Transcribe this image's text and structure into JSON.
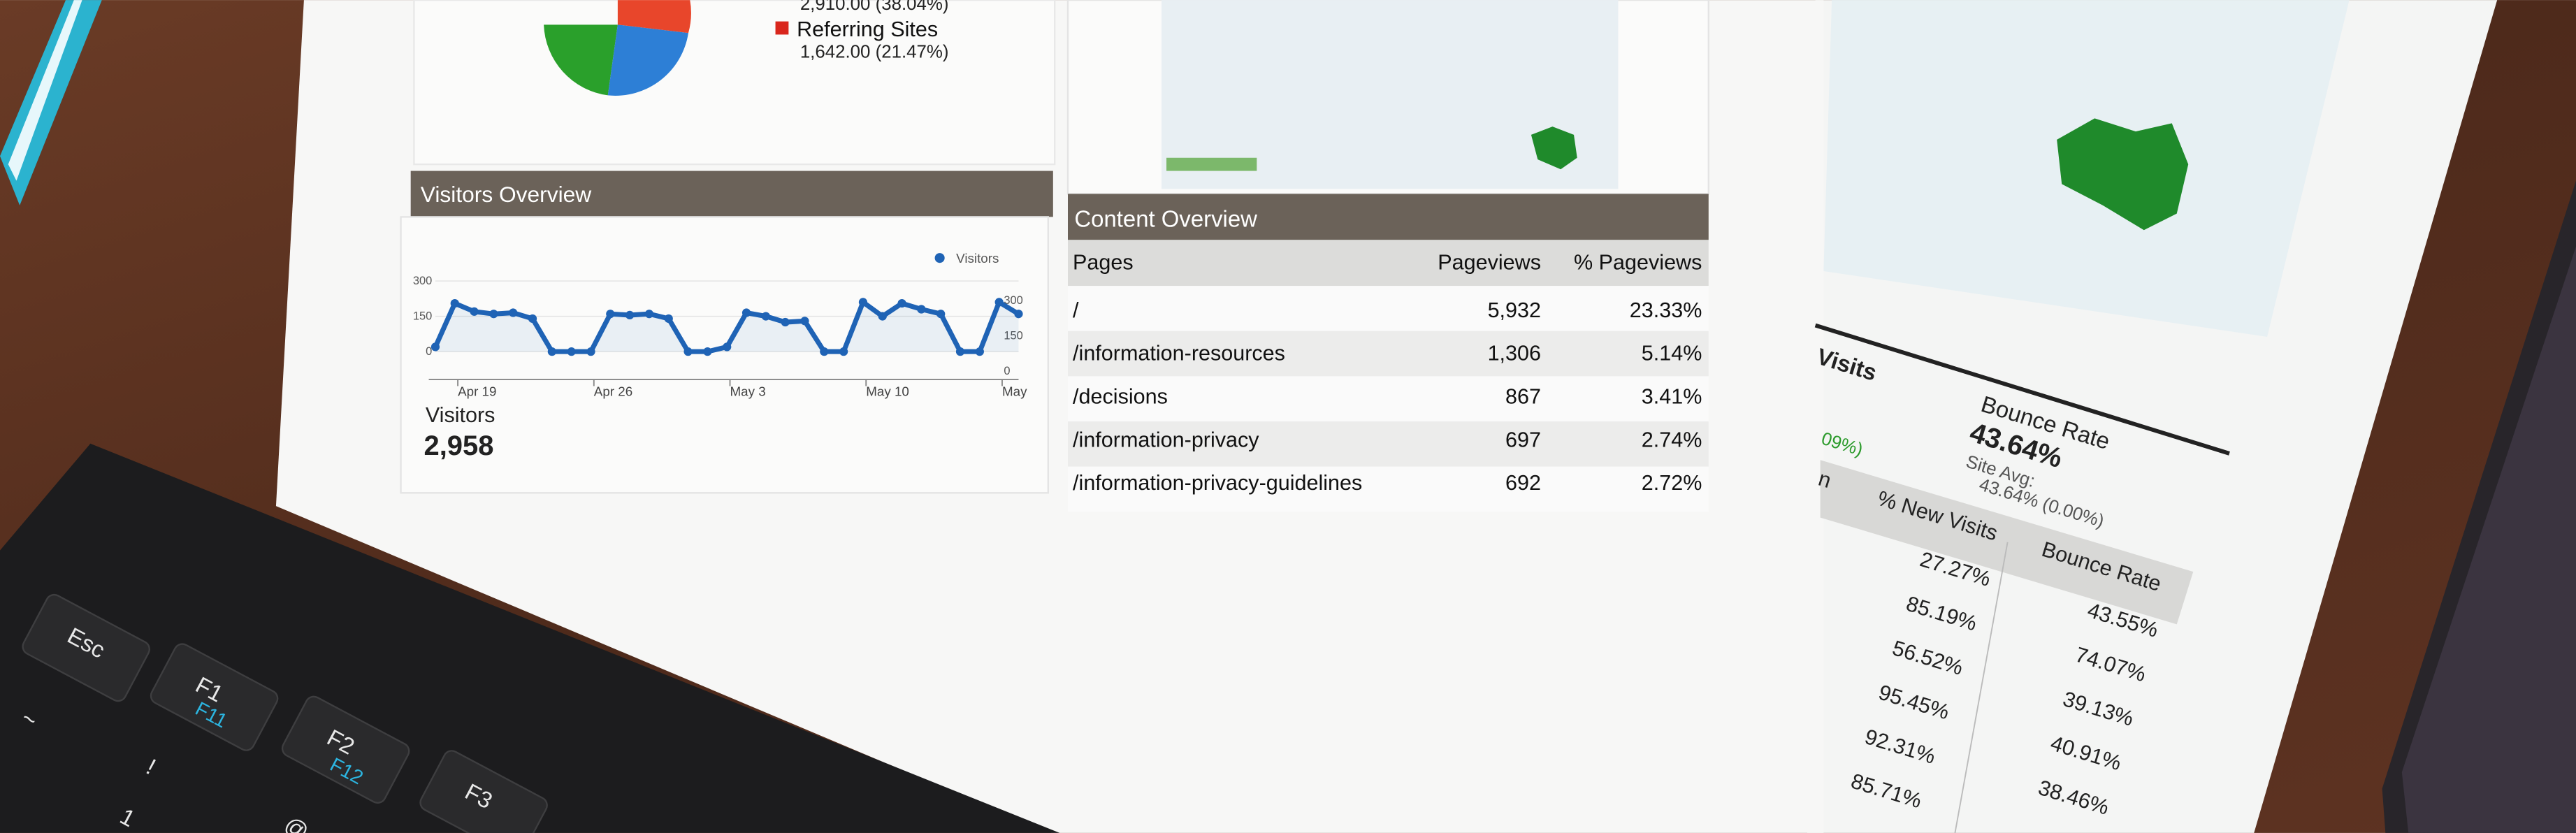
{
  "pie_legend": {
    "value_1": "2,910.00 (38.04%)",
    "label_2": "Referring Sites",
    "value_2": "1,642.00 (21.47%)"
  },
  "visitors_overview": {
    "title": "Visitors Overview",
    "chart_data": {
      "type": "line",
      "series": [
        {
          "name": "Visitors",
          "color": "#1f63b5",
          "values": [
            20,
            205,
            170,
            160,
            165,
            140,
            0,
            0,
            0,
            160,
            155,
            160,
            140,
            0,
            0,
            20,
            165,
            150,
            125,
            130,
            0,
            0,
            210,
            150,
            205,
            180,
            160,
            0,
            0,
            210,
            160
          ]
        }
      ],
      "xlim": [
        0,
        30
      ],
      "xticks": [
        {
          "value": 2,
          "label": "Apr 19"
        },
        {
          "value": 9,
          "label": "Apr 26"
        },
        {
          "value": 16,
          "label": "May 3"
        },
        {
          "value": 23,
          "label": "May 10"
        },
        {
          "value": 30,
          "label": "May"
        }
      ],
      "ylim": [
        0,
        300
      ],
      "yticks": [
        0,
        150,
        300
      ],
      "grid": true,
      "legend": "top-right"
    },
    "summary_label": "Visitors",
    "summary_value": "2,958"
  },
  "content_overview": {
    "title": "Content Overview",
    "columns": [
      "Pages",
      "Pageviews",
      "% Pageviews"
    ],
    "rows": [
      [
        "/",
        "5,932",
        "23.33%"
      ],
      [
        "/information-resources",
        "1,306",
        "5.14%"
      ],
      [
        "/decisions",
        "867",
        "3.41%"
      ],
      [
        "/information-privacy",
        "697",
        "2.74%"
      ],
      [
        "/information-privacy-guidelines",
        "692",
        "2.72%"
      ]
    ]
  },
  "right_report": {
    "visits_label": "Visits",
    "visits_change": "09%)",
    "bounce_label": "Bounce Rate",
    "bounce_value": "43.64%",
    "site_avg_label": "Site Avg:",
    "site_avg_value": "43.64% (0.00%)",
    "columns": [
      "n",
      "% New Visits",
      "Bounce Rate"
    ],
    "rows": [
      [
        "27.27%",
        "43.55%"
      ],
      [
        "85.19%",
        "74.07%"
      ],
      [
        "56.52%",
        "39.13%"
      ],
      [
        "95.45%",
        "40.91%"
      ],
      [
        "92.31%",
        "38.46%"
      ],
      [
        "85.71%"
      ]
    ]
  },
  "keyboard": {
    "keys": [
      "Esc",
      "F1",
      "F11",
      "F2",
      "F12",
      "F3",
      "~",
      "!",
      "1",
      "@"
    ]
  }
}
